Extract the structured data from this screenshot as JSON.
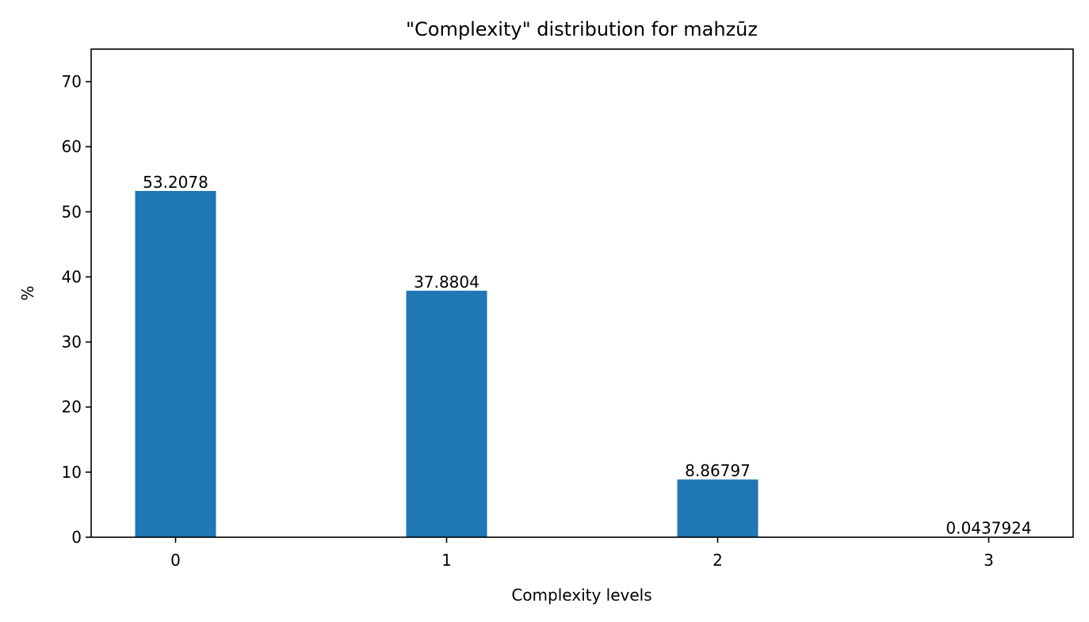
{
  "chart_data": {
    "type": "bar",
    "title": "\"Complexity\" distribution for mahzūz",
    "xlabel": "Complexity levels",
    "ylabel": "%",
    "categories": [
      "0",
      "1",
      "2",
      "3"
    ],
    "values": [
      53.2078,
      37.8804,
      8.86797,
      0.0437924
    ],
    "value_labels": [
      "53.2078",
      "37.8804",
      "8.86797",
      "0.0437924"
    ],
    "ylim": [
      0,
      75
    ],
    "yticks": [
      0,
      10,
      20,
      30,
      40,
      50,
      60,
      70
    ],
    "grid": false,
    "legend": "none",
    "bar_color": "#1f77b4"
  }
}
